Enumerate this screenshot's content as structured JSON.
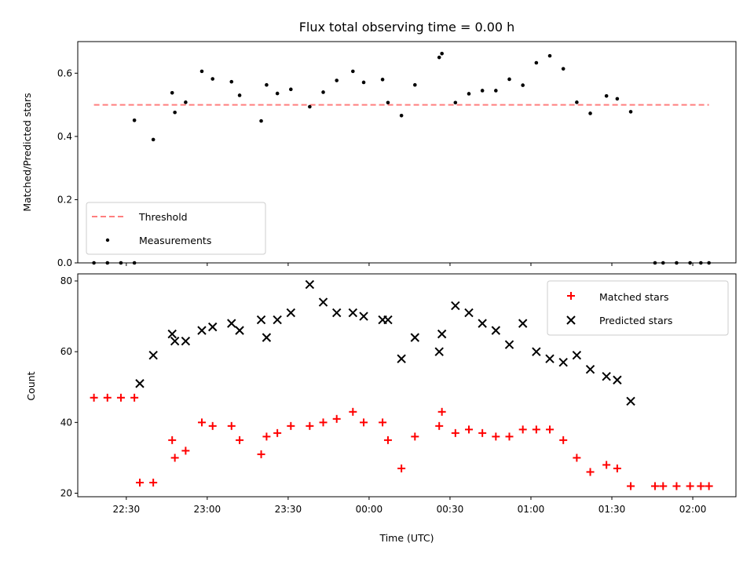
{
  "chart_data": [
    {
      "type": "scatter",
      "title": "Flux total observing time = 0.00 h",
      "xlabel": "",
      "ylabel": "Matched/Predicted stars",
      "xlim": [
        "22:12",
        "02:16"
      ],
      "ylim": [
        0.0,
        0.7
      ],
      "yticks": [
        "0.0",
        "0.2",
        "0.4",
        "0.6"
      ],
      "x_tick_positions": [
        "22:30",
        "23:00",
        "23:30",
        "00:00",
        "00:30",
        "01:00",
        "01:30",
        "02:00"
      ],
      "legend": {
        "location": "lower-left",
        "entries": [
          "Threshold",
          "Measurements"
        ]
      },
      "threshold": {
        "name": "Threshold",
        "value": 0.5,
        "x_start": "22:18",
        "x_end": "02:06",
        "color": "#ff7f7f",
        "style": "dashed"
      },
      "series": [
        {
          "name": "Measurements",
          "color": "#000000",
          "marker": "dot",
          "points": [
            [
              "22:18",
              0.0
            ],
            [
              "22:23",
              0.0
            ],
            [
              "22:28",
              0.0
            ],
            [
              "22:33",
              0.0
            ],
            [
              "22:33",
              0.451
            ],
            [
              "22:40",
              0.39
            ],
            [
              "22:47",
              0.538
            ],
            [
              "22:48",
              0.476
            ],
            [
              "22:52",
              0.508
            ],
            [
              "22:58",
              0.606
            ],
            [
              "23:02",
              0.582
            ],
            [
              "23:09",
              0.573
            ],
            [
              "23:12",
              0.53
            ],
            [
              "23:20",
              0.449
            ],
            [
              "23:22",
              0.563
            ],
            [
              "23:26",
              0.536
            ],
            [
              "23:31",
              0.549
            ],
            [
              "23:38",
              0.494
            ],
            [
              "23:43",
              0.54
            ],
            [
              "23:48",
              0.577
            ],
            [
              "23:54",
              0.606
            ],
            [
              "23:58",
              0.571
            ],
            [
              "00:05",
              0.58
            ],
            [
              "00:07",
              0.507
            ],
            [
              "00:12",
              0.466
            ],
            [
              "00:17",
              0.563
            ],
            [
              "00:26",
              0.65
            ],
            [
              "00:27",
              0.662
            ],
            [
              "00:32",
              0.507
            ],
            [
              "00:37",
              0.535
            ],
            [
              "00:42",
              0.545
            ],
            [
              "00:47",
              0.545
            ],
            [
              "00:52",
              0.581
            ],
            [
              "00:57",
              0.562
            ],
            [
              "01:02",
              0.633
            ],
            [
              "01:07",
              0.655
            ],
            [
              "01:12",
              0.614
            ],
            [
              "01:17",
              0.508
            ],
            [
              "01:22",
              0.473
            ],
            [
              "01:28",
              0.528
            ],
            [
              "01:32",
              0.519
            ],
            [
              "01:37",
              0.478
            ],
            [
              "01:46",
              0.0
            ],
            [
              "01:49",
              0.0
            ],
            [
              "01:54",
              0.0
            ],
            [
              "01:59",
              0.0
            ],
            [
              "02:03",
              0.0
            ],
            [
              "02:06",
              0.0
            ]
          ]
        }
      ]
    },
    {
      "type": "scatter",
      "title": "",
      "xlabel": "Time (UTC)",
      "ylabel": "Count",
      "xlim": [
        "22:12",
        "02:16"
      ],
      "ylim": [
        19,
        82
      ],
      "yticks": [
        "20",
        "40",
        "60",
        "80"
      ],
      "xticks": [
        "22:30",
        "23:00",
        "23:30",
        "00:00",
        "00:30",
        "01:00",
        "01:30",
        "02:00"
      ],
      "legend": {
        "location": "top-right",
        "entries": [
          "Matched stars",
          "Predicted stars"
        ]
      },
      "series": [
        {
          "name": "Matched stars",
          "color": "#ff0000",
          "marker": "plus",
          "points": [
            [
              "22:18",
              47
            ],
            [
              "22:23",
              47
            ],
            [
              "22:28",
              47
            ],
            [
              "22:33",
              47
            ],
            [
              "22:35",
              23
            ],
            [
              "22:40",
              23
            ],
            [
              "22:47",
              35
            ],
            [
              "22:48",
              30
            ],
            [
              "22:52",
              32
            ],
            [
              "22:58",
              40
            ],
            [
              "23:02",
              39
            ],
            [
              "23:09",
              39
            ],
            [
              "23:12",
              35
            ],
            [
              "23:20",
              31
            ],
            [
              "23:22",
              36
            ],
            [
              "23:26",
              37
            ],
            [
              "23:31",
              39
            ],
            [
              "23:38",
              39
            ],
            [
              "23:43",
              40
            ],
            [
              "23:48",
              41
            ],
            [
              "23:54",
              43
            ],
            [
              "23:58",
              40
            ],
            [
              "00:05",
              40
            ],
            [
              "00:07",
              35
            ],
            [
              "00:12",
              27
            ],
            [
              "00:17",
              36
            ],
            [
              "00:26",
              39
            ],
            [
              "00:27",
              43
            ],
            [
              "00:32",
              37
            ],
            [
              "00:37",
              38
            ],
            [
              "00:42",
              37
            ],
            [
              "00:47",
              36
            ],
            [
              "00:52",
              36
            ],
            [
              "00:57",
              38
            ],
            [
              "01:02",
              38
            ],
            [
              "01:07",
              38
            ],
            [
              "01:12",
              35
            ],
            [
              "01:17",
              30
            ],
            [
              "01:22",
              26
            ],
            [
              "01:28",
              28
            ],
            [
              "01:32",
              27
            ],
            [
              "01:37",
              22
            ],
            [
              "01:46",
              22
            ],
            [
              "01:49",
              22
            ],
            [
              "01:54",
              22
            ],
            [
              "01:59",
              22
            ],
            [
              "02:03",
              22
            ],
            [
              "02:06",
              22
            ]
          ]
        },
        {
          "name": "Predicted stars",
          "color": "#000000",
          "marker": "x",
          "points": [
            [
              "22:35",
              51
            ],
            [
              "22:40",
              59
            ],
            [
              "22:47",
              65
            ],
            [
              "22:48",
              63
            ],
            [
              "22:52",
              63
            ],
            [
              "22:58",
              66
            ],
            [
              "23:02",
              67
            ],
            [
              "23:09",
              68
            ],
            [
              "23:12",
              66
            ],
            [
              "23:20",
              69
            ],
            [
              "23:22",
              64
            ],
            [
              "23:26",
              69
            ],
            [
              "23:31",
              71
            ],
            [
              "23:38",
              79
            ],
            [
              "23:43",
              74
            ],
            [
              "23:48",
              71
            ],
            [
              "23:54",
              71
            ],
            [
              "23:58",
              70
            ],
            [
              "00:05",
              69
            ],
            [
              "00:07",
              69
            ],
            [
              "00:12",
              58
            ],
            [
              "00:17",
              64
            ],
            [
              "00:26",
              60
            ],
            [
              "00:27",
              65
            ],
            [
              "00:32",
              73
            ],
            [
              "00:37",
              71
            ],
            [
              "00:42",
              68
            ],
            [
              "00:47",
              66
            ],
            [
              "00:52",
              62
            ],
            [
              "00:57",
              68
            ],
            [
              "01:02",
              60
            ],
            [
              "01:07",
              58
            ],
            [
              "01:12",
              57
            ],
            [
              "01:17",
              59
            ],
            [
              "01:22",
              55
            ],
            [
              "01:28",
              53
            ],
            [
              "01:32",
              52
            ],
            [
              "01:37",
              46
            ]
          ]
        }
      ]
    }
  ]
}
